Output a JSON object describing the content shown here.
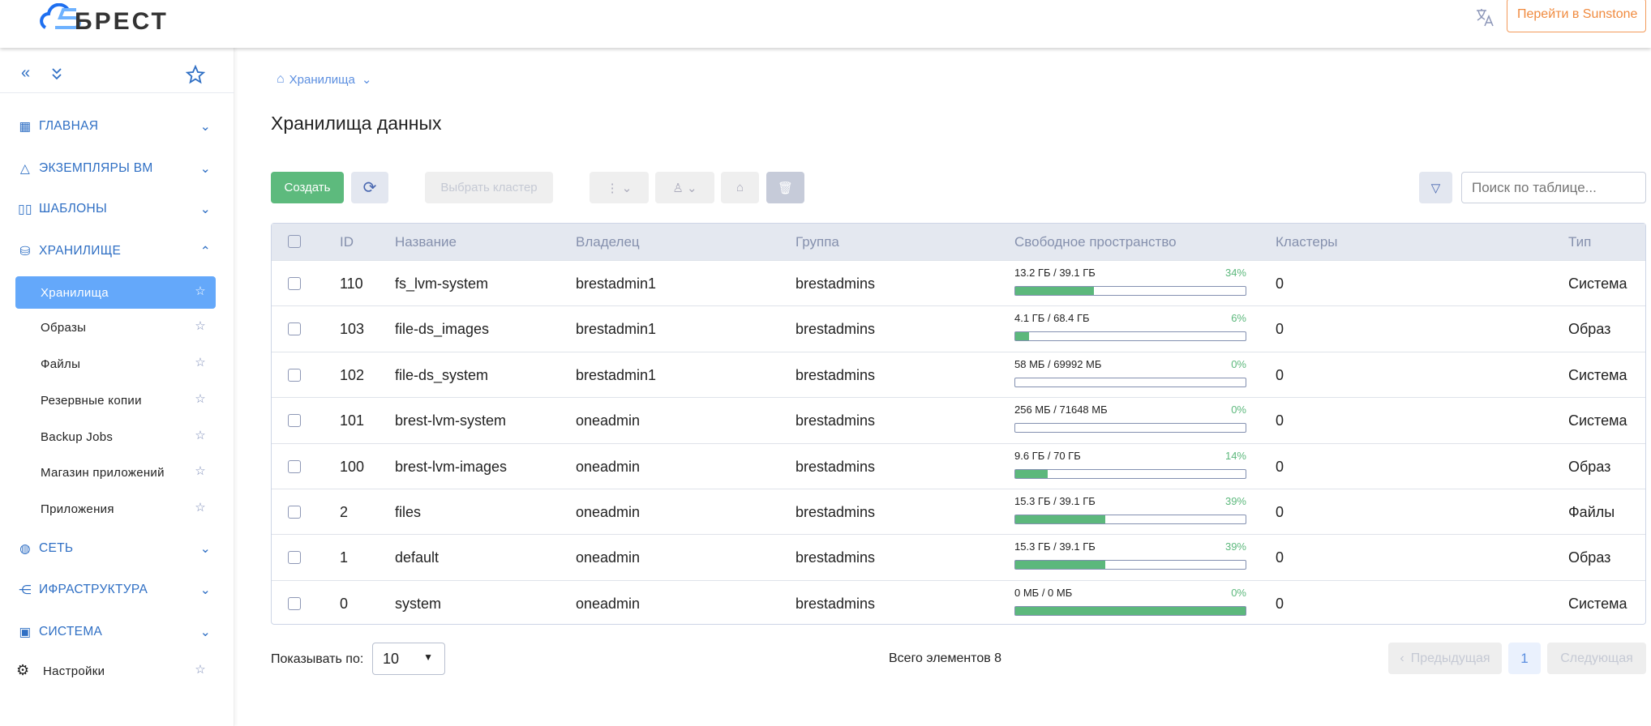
{
  "header": {
    "logo": "БРЕСТ",
    "sunstone_button": "Перейти в Sunstone"
  },
  "sidebar": {
    "sections": [
      {
        "label": "ГЛАВНАЯ",
        "icon": "dashboard-icon",
        "expanded": false
      },
      {
        "label": "ЭКЗЕМПЛЯРЫ ВМ",
        "icon": "triangle-icon",
        "expanded": false
      },
      {
        "label": "ШАБЛОНЫ",
        "icon": "templates-icon",
        "expanded": false
      },
      {
        "label": "ХРАНИЛИЩЕ",
        "icon": "database-icon",
        "expanded": true
      },
      {
        "label": "СЕТЬ",
        "icon": "globe-icon",
        "expanded": false
      },
      {
        "label": "ИФРАСТРУКТУРА",
        "icon": "network-icon",
        "expanded": false
      },
      {
        "label": "СИСТЕМА",
        "icon": "chip-icon",
        "expanded": false
      }
    ],
    "storage_items": [
      "Хранилища",
      "Образы",
      "Файлы",
      "Резервные копии",
      "Backup Jobs",
      "Магазин приложений",
      "Приложения"
    ],
    "active_item": "Хранилища",
    "settings": "Настройки"
  },
  "breadcrumb": "Хранилища",
  "page_title": "Хранилища данных",
  "toolbar": {
    "create": "Создать",
    "select_cluster": "Выбрать кластер",
    "search_placeholder": "Поиск по таблице..."
  },
  "table": {
    "columns": [
      "ID",
      "Название",
      "Владелец",
      "Группа",
      "Свободное пространство",
      "Кластеры",
      "Тип"
    ],
    "rows": [
      {
        "id": "110",
        "name": "fs_lvm-system",
        "owner": "brestadmin1",
        "group": "brestadmins",
        "space": "13.2 ГБ / 39.1 ГБ",
        "pct": "34%",
        "fill": 34,
        "clusters": "0",
        "type": "Система"
      },
      {
        "id": "103",
        "name": "file-ds_images",
        "owner": "brestadmin1",
        "group": "brestadmins",
        "space": "4.1 ГБ / 68.4 ГБ",
        "pct": "6%",
        "fill": 6,
        "clusters": "0",
        "type": "Образ"
      },
      {
        "id": "102",
        "name": "file-ds_system",
        "owner": "brestadmin1",
        "group": "brestadmins",
        "space": "58 МБ / 69992 МБ",
        "pct": "0%",
        "fill": 0,
        "clusters": "0",
        "type": "Система"
      },
      {
        "id": "101",
        "name": "brest-lvm-system",
        "owner": "oneadmin",
        "group": "brestadmins",
        "space": "256 МБ / 71648 МБ",
        "pct": "0%",
        "fill": 0,
        "clusters": "0",
        "type": "Система"
      },
      {
        "id": "100",
        "name": "brest-lvm-images",
        "owner": "oneadmin",
        "group": "brestadmins",
        "space": "9.6 ГБ / 70 ГБ",
        "pct": "14%",
        "fill": 14,
        "clusters": "0",
        "type": "Образ"
      },
      {
        "id": "2",
        "name": "files",
        "owner": "oneadmin",
        "group": "brestadmins",
        "space": "15.3 ГБ / 39.1 ГБ",
        "pct": "39%",
        "fill": 39,
        "clusters": "0",
        "type": "Файлы"
      },
      {
        "id": "1",
        "name": "default",
        "owner": "oneadmin",
        "group": "brestadmins",
        "space": "15.3 ГБ / 39.1 ГБ",
        "pct": "39%",
        "fill": 39,
        "clusters": "0",
        "type": "Образ"
      },
      {
        "id": "0",
        "name": "system",
        "owner": "oneadmin",
        "group": "brestadmins",
        "space": "0 МБ / 0 МБ",
        "pct": "0%",
        "fill": 100,
        "clusters": "0",
        "type": "Система"
      }
    ]
  },
  "footer": {
    "page_size_label": "Показывать по:",
    "page_size": "10",
    "total": "Всего элементов 8",
    "prev": "Предыдущая",
    "page": "1",
    "next": "Следующая"
  },
  "colors": {
    "accent": "#2f6fc4",
    "active": "#64a8fa",
    "green": "#5cb87c",
    "orange": "#f08a3e"
  }
}
